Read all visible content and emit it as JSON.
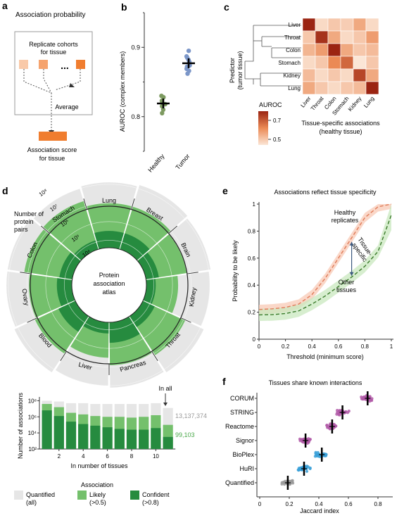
{
  "panel_labels": {
    "a": "a",
    "b": "b",
    "c": "c",
    "d": "d",
    "e": "e",
    "f": "f"
  },
  "panel_a": {
    "title": "Association probability",
    "box_text_1": "Replicate cohorts",
    "box_text_2": "for tissue",
    "dots": "...",
    "average": "Average",
    "score_1": "Association score",
    "score_2": "for tissue"
  },
  "chart_data": [
    {
      "id": "b",
      "type": "scatter",
      "ylabel": "AUROC (complex members)",
      "categories": [
        "Healthy",
        "Tumor"
      ],
      "ylim": [
        0.75,
        0.95
      ],
      "yticks": [
        "0.8",
        "0.9"
      ],
      "colors": [
        "#7d9a60",
        "#7b96c8"
      ],
      "series": [
        {
          "values": [
            0.823,
            0.815,
            0.828,
            0.81,
            0.82,
            0.83,
            0.805,
            0.818
          ]
        },
        {
          "values": [
            0.895,
            0.885,
            0.872,
            0.879,
            0.869,
            0.882,
            0.862,
            0.866,
            0.874,
            0.887
          ]
        }
      ],
      "means": [
        0.819,
        0.877
      ]
    },
    {
      "id": "c",
      "type": "heatmap",
      "ylabel": "Predictor (tumor tissue)",
      "xlabel": "Tissue-specific associations (healthy tissue)",
      "rows": [
        "Liver",
        "Throat",
        "Colon",
        "Stomach",
        "Kidney",
        "Lung"
      ],
      "cols": [
        "Liver",
        "Throat",
        "Colon",
        "Stomach",
        "Kidney",
        "Lung"
      ],
      "values": [
        [
          0.82,
          0.52,
          0.55,
          0.54,
          0.6,
          0.52
        ],
        [
          0.55,
          0.78,
          0.6,
          0.52,
          0.55,
          0.62
        ],
        [
          0.58,
          0.62,
          0.8,
          0.6,
          0.55,
          0.57
        ],
        [
          0.52,
          0.55,
          0.65,
          0.7,
          0.5,
          0.55
        ],
        [
          0.57,
          0.52,
          0.55,
          0.52,
          0.75,
          0.6
        ],
        [
          0.6,
          0.55,
          0.52,
          0.55,
          0.57,
          0.82
        ]
      ],
      "colorbar_title": "AUROC",
      "colorbar_ticks": [
        "0.7",
        "0.5"
      ]
    },
    {
      "id": "d-radial",
      "type": "bar",
      "categories": [
        "Lung",
        "Breast",
        "Brain",
        "Kidney",
        "Throat",
        "Pancreas",
        "Liver",
        "Blood",
        "Ovary",
        "Colon",
        "Stomach"
      ],
      "series": [
        {
          "name": "Quantified (all)",
          "values": [
            7.1,
            7.2,
            7.1,
            7.0,
            7.2,
            7.1,
            7.0,
            7.2,
            7.1,
            7.1,
            7.0
          ]
        },
        {
          "name": "Likely (>0.5)",
          "values": [
            6.0,
            6.0,
            5.8,
            5.3,
            6.1,
            5.9,
            5.5,
            6.0,
            5.9,
            6.2,
            6.3
          ]
        },
        {
          "name": "Confident (>0.8)",
          "values": [
            4.5,
            4.5,
            4.3,
            4.1,
            4.3,
            4.7,
            4.2,
            4.6,
            4.4,
            4.3,
            4.1
          ]
        }
      ],
      "radial_axis_title": [
        "Number of",
        "protein",
        "pairs"
      ],
      "radial_ticks": [
        "10⁸",
        "10⁷",
        "10⁶",
        "10⁵",
        "10⁴"
      ],
      "center_label": [
        "Protein",
        "association",
        "atlas"
      ]
    },
    {
      "id": "d-bar",
      "type": "bar",
      "ylabel": "Number of associations",
      "xlabel": "In number of tissues",
      "x": [
        1,
        2,
        3,
        4,
        5,
        6,
        7,
        8,
        9,
        10,
        11
      ],
      "xticks": [
        "2",
        "4",
        "6",
        "8",
        "10"
      ],
      "yticks": [
        "10²",
        "10⁴",
        "10⁶",
        "10⁸"
      ],
      "series": [
        {
          "name": "Quantified (all)",
          "values": [
            8.0,
            7.9,
            7.7,
            7.7,
            7.6,
            7.6,
            7.6,
            7.6,
            7.6,
            7.7,
            7.1
          ]
        },
        {
          "name": "Likely (>0.5)",
          "values": [
            7.6,
            7.2,
            6.5,
            6.3,
            6.1,
            6.0,
            6.0,
            5.9,
            6.0,
            6.2,
            5.0
          ]
        },
        {
          "name": "Confident (>0.8)",
          "values": [
            6.8,
            6.1,
            5.4,
            5.1,
            4.9,
            4.7,
            4.5,
            4.4,
            4.4,
            4.6,
            3.5
          ]
        }
      ],
      "ylim": [
        2,
        8.3
      ],
      "annotation": "In all",
      "value_all": "13,137,374",
      "value_likely": "99,103",
      "legend_title": "Association",
      "legend": [
        {
          "l1": "Quantified",
          "l2": "(all)",
          "color": "#e6e6e6"
        },
        {
          "l1": "Likely",
          "l2": "(>0.5)",
          "color": "#74c06c"
        },
        {
          "l1": "Confident",
          "l2": "(>0.8)",
          "color": "#268b3f"
        }
      ]
    },
    {
      "id": "e",
      "type": "line",
      "title": "Associations reflect tissue specificity",
      "xlabel": "Threshold (minimum score)",
      "ylabel": "Probability to be likely",
      "xlim": [
        0,
        1
      ],
      "ylim": [
        0,
        1
      ],
      "xticks": [
        "0",
        "0.2",
        "0.4",
        "0.6",
        "0.8",
        "1"
      ],
      "yticks": [
        "0",
        "0.2",
        "0.4",
        "0.6",
        "0.8",
        "1"
      ],
      "x": [
        0,
        0.1,
        0.2,
        0.3,
        0.4,
        0.5,
        0.6,
        0.7,
        0.8,
        0.9,
        1.0
      ],
      "series": [
        {
          "values": [
            0.22,
            0.225,
            0.235,
            0.26,
            0.33,
            0.45,
            0.6,
            0.75,
            0.9,
            0.98,
            1.0
          ],
          "color": "#e07b58"
        },
        {
          "values": [
            0.18,
            0.182,
            0.19,
            0.21,
            0.26,
            0.32,
            0.39,
            0.46,
            0.54,
            0.65,
            0.92
          ],
          "color": "#3a7a2a"
        }
      ],
      "annotations": {
        "healthy_1": "Healthy",
        "healthy_2": "replicates",
        "other_1": "Other",
        "other_2": "tissues",
        "spec_1": "Tissue-",
        "spec_2": "specific"
      }
    },
    {
      "id": "f",
      "type": "scatter",
      "title": "Tissues share known interactions",
      "xlabel": "Jaccard index",
      "xlim": [
        0,
        0.9
      ],
      "xticks": [
        "0",
        "0.2",
        "0.4",
        "0.6",
        "0.8"
      ],
      "categories": [
        "CORUM",
        "STRING",
        "Reactome",
        "Signor",
        "BioPlex",
        "HuRI",
        "Quantified"
      ],
      "colors": [
        "#b25aa8",
        "#b25aa8",
        "#b25aa8",
        "#b25aa8",
        "#3aa0d8",
        "#3aa0d8",
        "#9a9a9a"
      ],
      "means": [
        0.73,
        0.56,
        0.49,
        0.31,
        0.42,
        0.3,
        0.19
      ]
    }
  ]
}
